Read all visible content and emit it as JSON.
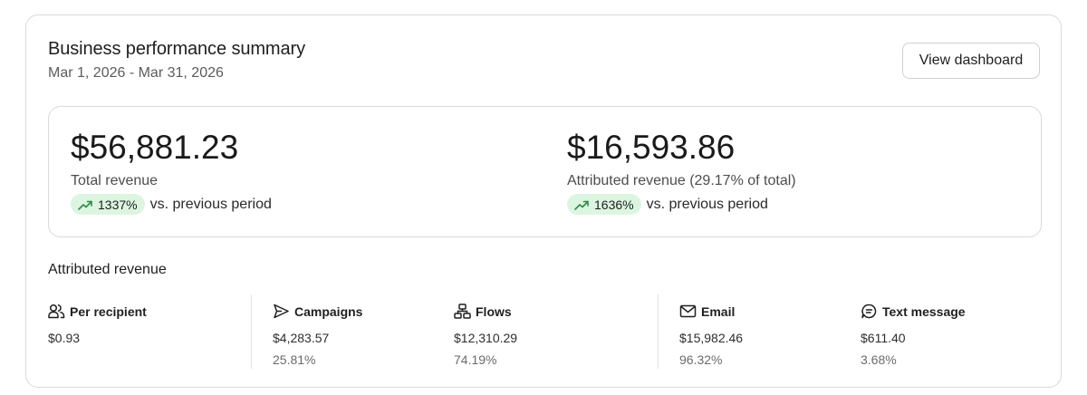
{
  "header": {
    "title": "Business performance summary",
    "date_range": "Mar 1, 2026 - Mar 31, 2026",
    "view_button_label": "View dashboard"
  },
  "kpis": [
    {
      "value": "$56,881.23",
      "label": "Total revenue",
      "change": "1337%",
      "change_suffix": "vs. previous period",
      "trend": "up"
    },
    {
      "value": "$16,593.86",
      "label": "Attributed revenue (29.17% of total)",
      "change": "1636%",
      "change_suffix": "vs. previous period",
      "trend": "up"
    }
  ],
  "attributed": {
    "title": "Attributed revenue",
    "metrics": [
      {
        "icon": "people-icon",
        "label": "Per recipient",
        "value": "$0.93",
        "pct": ""
      },
      {
        "icon": "send-icon",
        "label": "Campaigns",
        "value": "$4,283.57",
        "pct": "25.81%"
      },
      {
        "icon": "flow-icon",
        "label": "Flows",
        "value": "$12,310.29",
        "pct": "74.19%"
      },
      {
        "icon": "mail-icon",
        "label": "Email",
        "value": "$15,982.46",
        "pct": "96.32%"
      },
      {
        "icon": "chat-icon",
        "label": "Text message",
        "value": "$611.40",
        "pct": "3.68%"
      }
    ]
  },
  "colors": {
    "badge_bg": "#dcf5e1",
    "trend_green": "#2e8a4a",
    "border": "#d9d9d9"
  }
}
